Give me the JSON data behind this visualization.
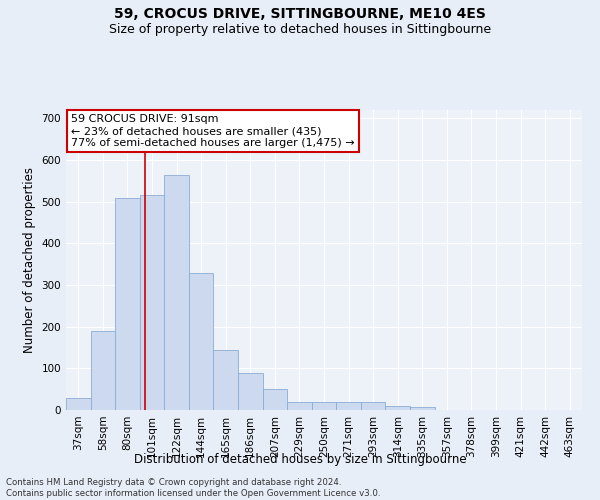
{
  "title": "59, CROCUS DRIVE, SITTINGBOURNE, ME10 4ES",
  "subtitle": "Size of property relative to detached houses in Sittingbourne",
  "xlabel": "Distribution of detached houses by size in Sittingbourne",
  "ylabel": "Number of detached properties",
  "categories": [
    "37sqm",
    "58sqm",
    "80sqm",
    "101sqm",
    "122sqm",
    "144sqm",
    "165sqm",
    "186sqm",
    "207sqm",
    "229sqm",
    "250sqm",
    "271sqm",
    "293sqm",
    "314sqm",
    "335sqm",
    "357sqm",
    "378sqm",
    "399sqm",
    "421sqm",
    "442sqm",
    "463sqm"
  ],
  "values": [
    30,
    190,
    510,
    515,
    565,
    330,
    145,
    90,
    50,
    20,
    20,
    20,
    20,
    10,
    8,
    0,
    0,
    0,
    0,
    0,
    0
  ],
  "bar_color": "#ccd9ee",
  "bar_edge_color": "#8aadd4",
  "red_line_x": 2.72,
  "annotation_text": "59 CROCUS DRIVE: 91sqm\n← 23% of detached houses are smaller (435)\n77% of semi-detached houses are larger (1,475) →",
  "annotation_box_color": "#ffffff",
  "annotation_box_edge_color": "#cc0000",
  "ylim": [
    0,
    720
  ],
  "yticks": [
    0,
    100,
    200,
    300,
    400,
    500,
    600,
    700
  ],
  "footer": "Contains HM Land Registry data © Crown copyright and database right 2024.\nContains public sector information licensed under the Open Government Licence v3.0.",
  "bg_color": "#e8eef8",
  "plot_bg_color": "#edf2f9",
  "grid_color": "#ffffff",
  "title_fontsize": 10,
  "subtitle_fontsize": 9,
  "tick_fontsize": 7.5,
  "label_fontsize": 8.5,
  "annotation_fontsize": 8
}
